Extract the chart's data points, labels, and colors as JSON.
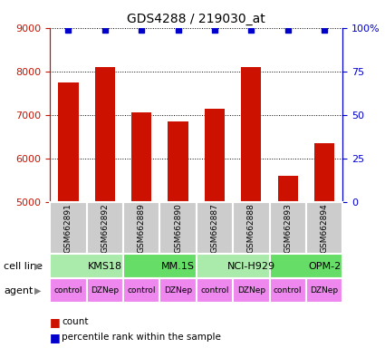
{
  "title": "GDS4288 / 219030_at",
  "samples": [
    "GSM662891",
    "GSM662892",
    "GSM662889",
    "GSM662890",
    "GSM662887",
    "GSM662888",
    "GSM662893",
    "GSM662894"
  ],
  "counts": [
    7750,
    8100,
    7050,
    6850,
    7150,
    8100,
    5600,
    6350
  ],
  "percentile_ranks": [
    99,
    99,
    99,
    99,
    99,
    99,
    99,
    99
  ],
  "bar_color": "#cc1100",
  "dot_color": "#0000cc",
  "ylim_left": [
    5000,
    9000
  ],
  "ylim_right": [
    0,
    100
  ],
  "yticks_left": [
    5000,
    6000,
    7000,
    8000,
    9000
  ],
  "yticks_right": [
    0,
    25,
    50,
    75,
    100
  ],
  "ytick_right_labels": [
    "0",
    "25",
    "50",
    "75",
    "100%"
  ],
  "ylabel_left_color": "#cc1100",
  "ylabel_right_color": "#0000cc",
  "cell_lines": [
    {
      "label": "KMS18",
      "span": [
        0,
        2
      ],
      "color": "#aaeaaa"
    },
    {
      "label": "MM.1S",
      "span": [
        2,
        4
      ],
      "color": "#66dd66"
    },
    {
      "label": "NCI-H929",
      "span": [
        4,
        6
      ],
      "color": "#aaeaaa"
    },
    {
      "label": "OPM-2",
      "span": [
        6,
        8
      ],
      "color": "#66dd66"
    }
  ],
  "agents": [
    "control",
    "DZNep",
    "control",
    "DZNep",
    "control",
    "DZNep",
    "control",
    "DZNep"
  ],
  "agent_color": "#ee88ee",
  "sample_box_color": "#cccccc",
  "legend_count_color": "#cc1100",
  "legend_pct_color": "#0000cc"
}
